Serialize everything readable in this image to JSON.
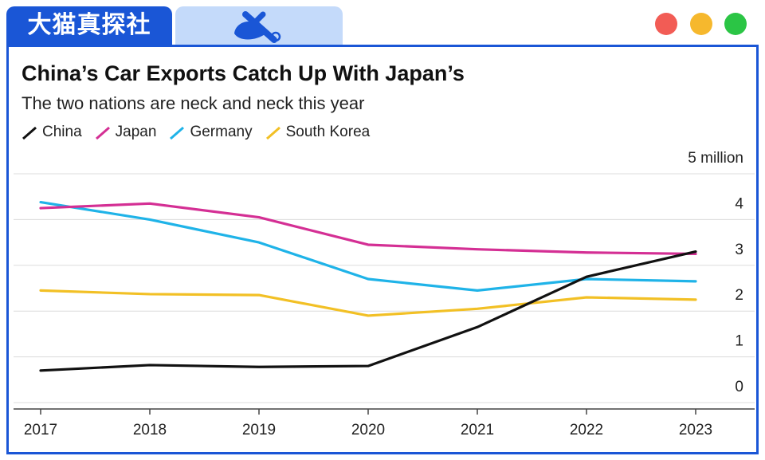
{
  "header": {
    "brand_label": "大猫真探社"
  },
  "window_controls": {
    "close_color": "#f25c55",
    "minimize_color": "#f6b82d",
    "maximize_color": "#2bc545"
  },
  "chart_data": {
    "type": "line",
    "title": "China’s Car Exports Catch Up With Japan’s",
    "subtitle": "The two nations are neck and neck this year",
    "x": [
      "2017",
      "2018",
      "2019",
      "2020",
      "2021",
      "2022",
      "2023"
    ],
    "y_unit_label": "5 million",
    "y_ticks": [
      "0",
      "1",
      "2",
      "3",
      "4"
    ],
    "ylim": [
      0,
      5
    ],
    "grid": true,
    "legend_position": "top-left",
    "series": [
      {
        "name": "China",
        "color": "#111111",
        "values": [
          0.7,
          0.82,
          0.78,
          0.8,
          1.65,
          2.75,
          3.3
        ]
      },
      {
        "name": "Japan",
        "color": "#d42f94",
        "values": [
          4.25,
          4.35,
          4.05,
          3.45,
          3.35,
          3.28,
          3.25
        ]
      },
      {
        "name": "Germany",
        "color": "#1fb3e8",
        "values": [
          4.38,
          4.0,
          3.5,
          2.7,
          2.45,
          2.7,
          2.65
        ]
      },
      {
        "name": "South Korea",
        "color": "#f2c025",
        "values": [
          2.45,
          2.37,
          2.35,
          1.9,
          2.05,
          2.3,
          2.25
        ]
      }
    ]
  }
}
